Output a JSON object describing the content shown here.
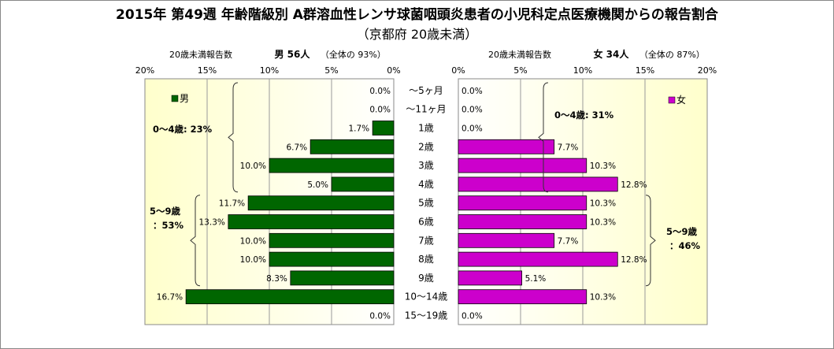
{
  "title": "2015年 第49週 年齢階級別 A群溶血性レンサ球菌咽頭炎患者の小児科定点医療機関からの報告割合",
  "subtitle": "（京都府 20歳未満）",
  "male_header": {
    "count_label": "20歳未満報告数",
    "sex_count": "男  56人",
    "share": "（全体の  93%）"
  },
  "female_header": {
    "count_label": "20歳未満報告数",
    "sex_count": "女  34人",
    "share": "（全体の  87%）"
  },
  "axis_ticks": [
    "0%",
    "5%",
    "10%",
    "15%",
    "20%"
  ],
  "annotations": {
    "male_0_4": "0～4歳: 23%",
    "male_5_9_line1": "5～9歳",
    "male_5_9_line2": "：53%",
    "female_0_4": "0～4歳: 31%",
    "female_5_9_line1": "5～9歳",
    "female_5_9_line2": "：46%"
  },
  "colors": {
    "male": "#006600",
    "female": "#CC00CC",
    "background_edge": "#FFFFCC",
    "background_center": "#FFFFFF"
  },
  "chart_data": {
    "type": "bar",
    "orientation": "horizontal-butterfly",
    "categories": [
      "～5ヶ月",
      "～11ヶ月",
      "1歳",
      "2歳",
      "3歳",
      "4歳",
      "5歳",
      "6歳",
      "7歳",
      "8歳",
      "9歳",
      "10～14歳",
      "15～19歳"
    ],
    "series": [
      {
        "name": "男",
        "values": [
          0.0,
          0.0,
          1.7,
          6.7,
          10.0,
          5.0,
          11.7,
          13.3,
          10.0,
          10.0,
          8.3,
          16.7,
          0.0
        ]
      },
      {
        "name": "女",
        "values": [
          0.0,
          0.0,
          0.0,
          7.7,
          10.3,
          12.8,
          10.3,
          10.3,
          7.7,
          12.8,
          5.1,
          10.3,
          0.0
        ]
      }
    ],
    "xlim": [
      0,
      20
    ],
    "tick_step": 5,
    "grid": true,
    "legend": "top-left (男), top-right (女)"
  }
}
